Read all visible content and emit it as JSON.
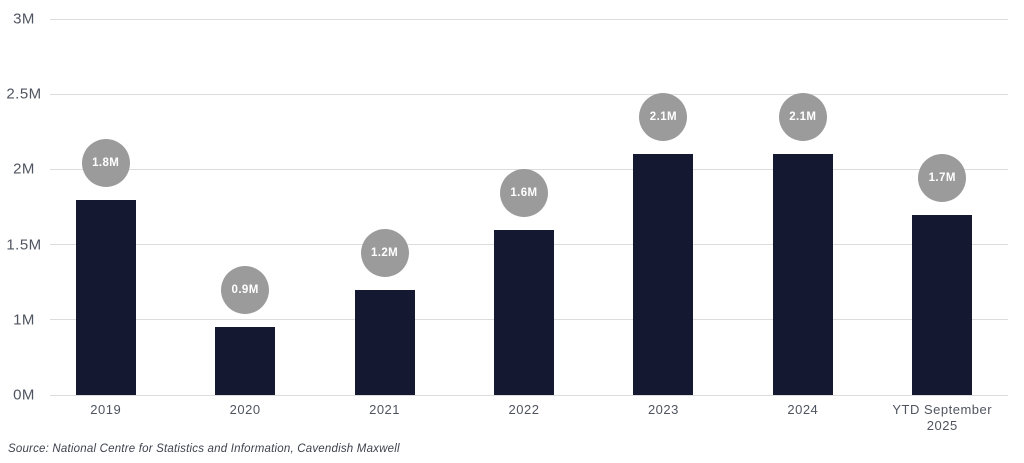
{
  "chart_data": {
    "type": "bar",
    "title": "",
    "xlabel": "",
    "ylabel": "",
    "categories": [
      "2019",
      "2020",
      "2021",
      "2022",
      "2023",
      "2024",
      "YTD September 2025"
    ],
    "values": [
      1.8,
      0.9,
      1.2,
      1.6,
      2.1,
      2.1,
      1.7
    ],
    "value_labels": [
      "1.8M",
      "0.9M",
      "1.2M",
      "1.6M",
      "2.1M",
      "2.1M",
      "1.7M"
    ],
    "y_ticks": [
      "0M",
      "1M",
      "1.5M",
      "2M",
      "2.5M",
      "3M"
    ],
    "y_tick_values": [
      0,
      1,
      1.5,
      2,
      2.5,
      3
    ],
    "ylim": [
      0,
      3
    ],
    "grid": true,
    "legend": false,
    "axis_note": "y tick labels are equally spaced (non-linear spacing between 0M and 1M)",
    "colors": {
      "bar": "#141831",
      "badge": "#9b9b9b",
      "badge_text": "#ffffff",
      "gridline": "#dcdcdc",
      "axis_text": "#4f5560"
    }
  },
  "footer": {
    "source": "Source: National Centre for Statistics and Information, Cavendish Maxwell"
  }
}
